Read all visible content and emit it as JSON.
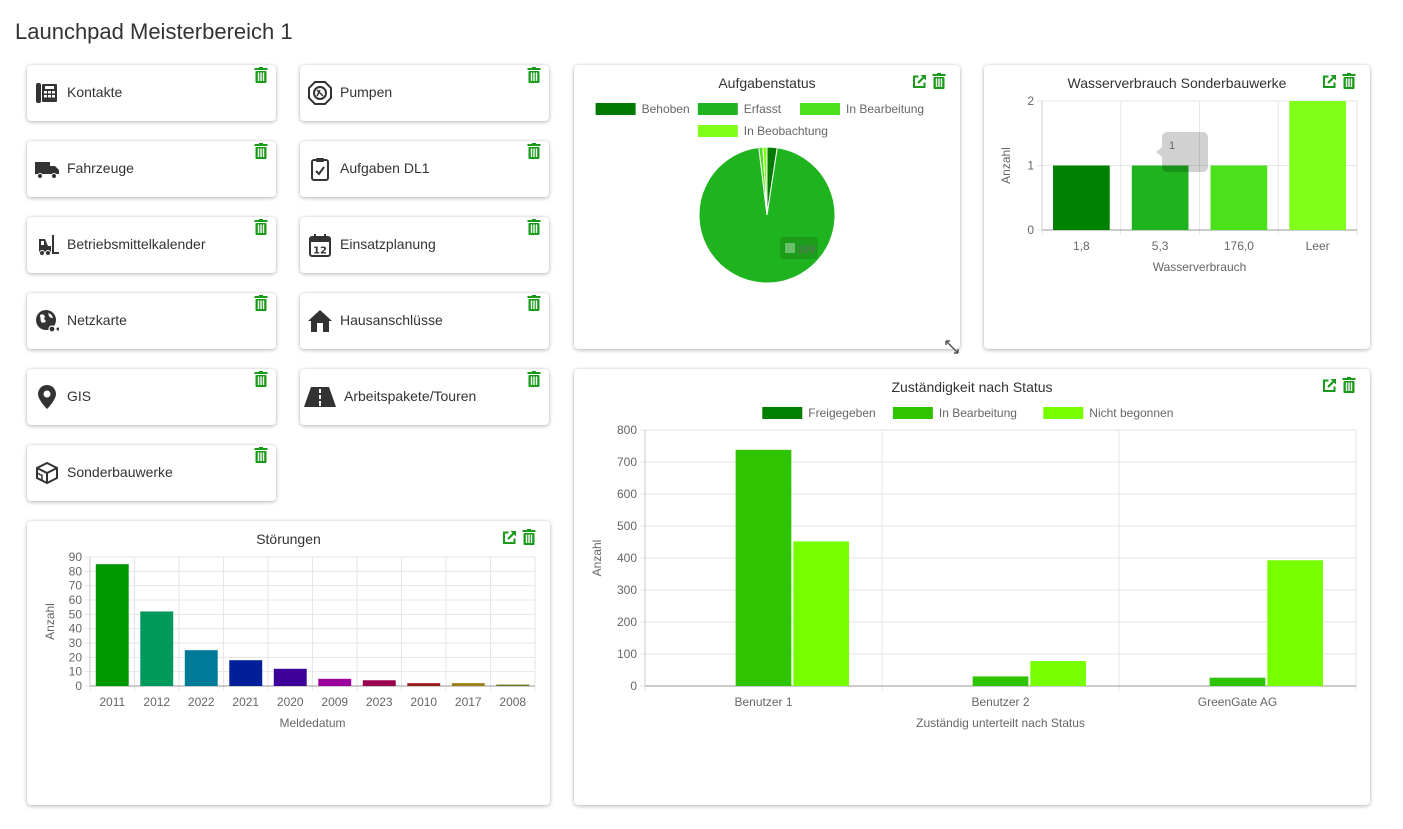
{
  "page": {
    "title": "Launchpad Meisterbereich 1"
  },
  "colors": {
    "accent_green": "#1a9a1a",
    "icon_dark": "#333333"
  },
  "tiles": [
    {
      "label": "Kontakte",
      "icon": "phone-directory-icon"
    },
    {
      "label": "Pumpen",
      "icon": "pump-icon"
    },
    {
      "label": "Fahrzeuge",
      "icon": "truck-icon"
    },
    {
      "label": "Aufgaben DL1",
      "icon": "clipboard-check-icon"
    },
    {
      "label": "Betriebsmittelkalender",
      "icon": "forklift-icon"
    },
    {
      "label": "Einsatzplanung",
      "icon": "calendar-icon"
    },
    {
      "label": "Netzkarte",
      "icon": "globe-network-icon"
    },
    {
      "label": "Hausanschlüsse",
      "icon": "house-icon"
    },
    {
      "label": "GIS",
      "icon": "map-marker-icon"
    },
    {
      "label": "Arbeitspakete/Touren",
      "icon": "road-icon"
    },
    {
      "label": "Sonderbauwerke",
      "icon": "cubes-icon"
    }
  ],
  "widgets": {
    "aufgabenstatus": {
      "title": "Aufgabenstatus",
      "tooltip": "199",
      "chart_data": {
        "type": "pie",
        "title": "Aufgabenstatus",
        "legend_position": "top",
        "labels": [
          "Behoben",
          "Erfasst",
          "In Bearbeitung",
          "In Beobachtung"
        ],
        "values": [
          5,
          199,
          2,
          2
        ],
        "colors": [
          "#007a00",
          "#1fb31f",
          "#4ae01a",
          "#80ff1a"
        ]
      }
    },
    "wasserverbrauch": {
      "title": "Wasserverbrauch Sonderbauwerke",
      "tooltip": "1",
      "chart_data": {
        "type": "bar",
        "title": "Wasserverbrauch Sonderbauwerke",
        "categories": [
          "1,8",
          "5,3",
          "176,0",
          "Leer"
        ],
        "values": [
          1,
          1,
          1,
          2
        ],
        "colors": [
          "#008000",
          "#1fb31f",
          "#4ae01a",
          "#80ff1a"
        ],
        "xlabel": "Wasserverbrauch",
        "ylabel": "Anzahl",
        "ylim": [
          0,
          2
        ],
        "yticks": [
          "0",
          "1",
          "2"
        ],
        "grid": true
      }
    },
    "stoerungen": {
      "title": "Störungen",
      "chart_data": {
        "type": "bar",
        "title": "Störungen",
        "categories": [
          "2011",
          "2012",
          "2022",
          "2021",
          "2020",
          "2009",
          "2023",
          "2010",
          "2017",
          "2008"
        ],
        "values": [
          85,
          52,
          25,
          18,
          12,
          5,
          4,
          2,
          2,
          1
        ],
        "colors": [
          "#009900",
          "#00995c",
          "#007a99",
          "#001f99",
          "#3d0099",
          "#99009c",
          "#99004d",
          "#991f1f",
          "#99801a",
          "#6b7a1a"
        ],
        "xlabel": "Meldedatum",
        "ylabel": "Anzahl",
        "ylim": [
          0,
          90
        ],
        "yticks": [
          "0",
          "10",
          "20",
          "30",
          "40",
          "50",
          "60",
          "70",
          "80",
          "90"
        ],
        "grid": true
      }
    },
    "zustaendigkeit": {
      "title": "Zuständigkeit nach Status",
      "chart_data": {
        "type": "bar",
        "title": "Zuständigkeit nach Status",
        "legend_position": "top",
        "categories": [
          "Benutzer 1",
          "Benutzer 2",
          "GreenGate AG"
        ],
        "series": [
          {
            "name": "Freigegeben",
            "values": [
              0,
              0,
              0
            ],
            "color": "#008000"
          },
          {
            "name": "In Bearbeitung",
            "values": [
              738,
              30,
              26
            ],
            "color": "#2fc400"
          },
          {
            "name": "Nicht begonnen",
            "values": [
              452,
              78,
              393
            ],
            "color": "#77ff00"
          }
        ],
        "xlabel": "Zuständig unterteilt nach Status",
        "ylabel": "Anzahl",
        "ylim": [
          0,
          800
        ],
        "yticks": [
          "0",
          "100",
          "200",
          "300",
          "400",
          "500",
          "600",
          "700",
          "800"
        ],
        "grid": true
      }
    }
  }
}
